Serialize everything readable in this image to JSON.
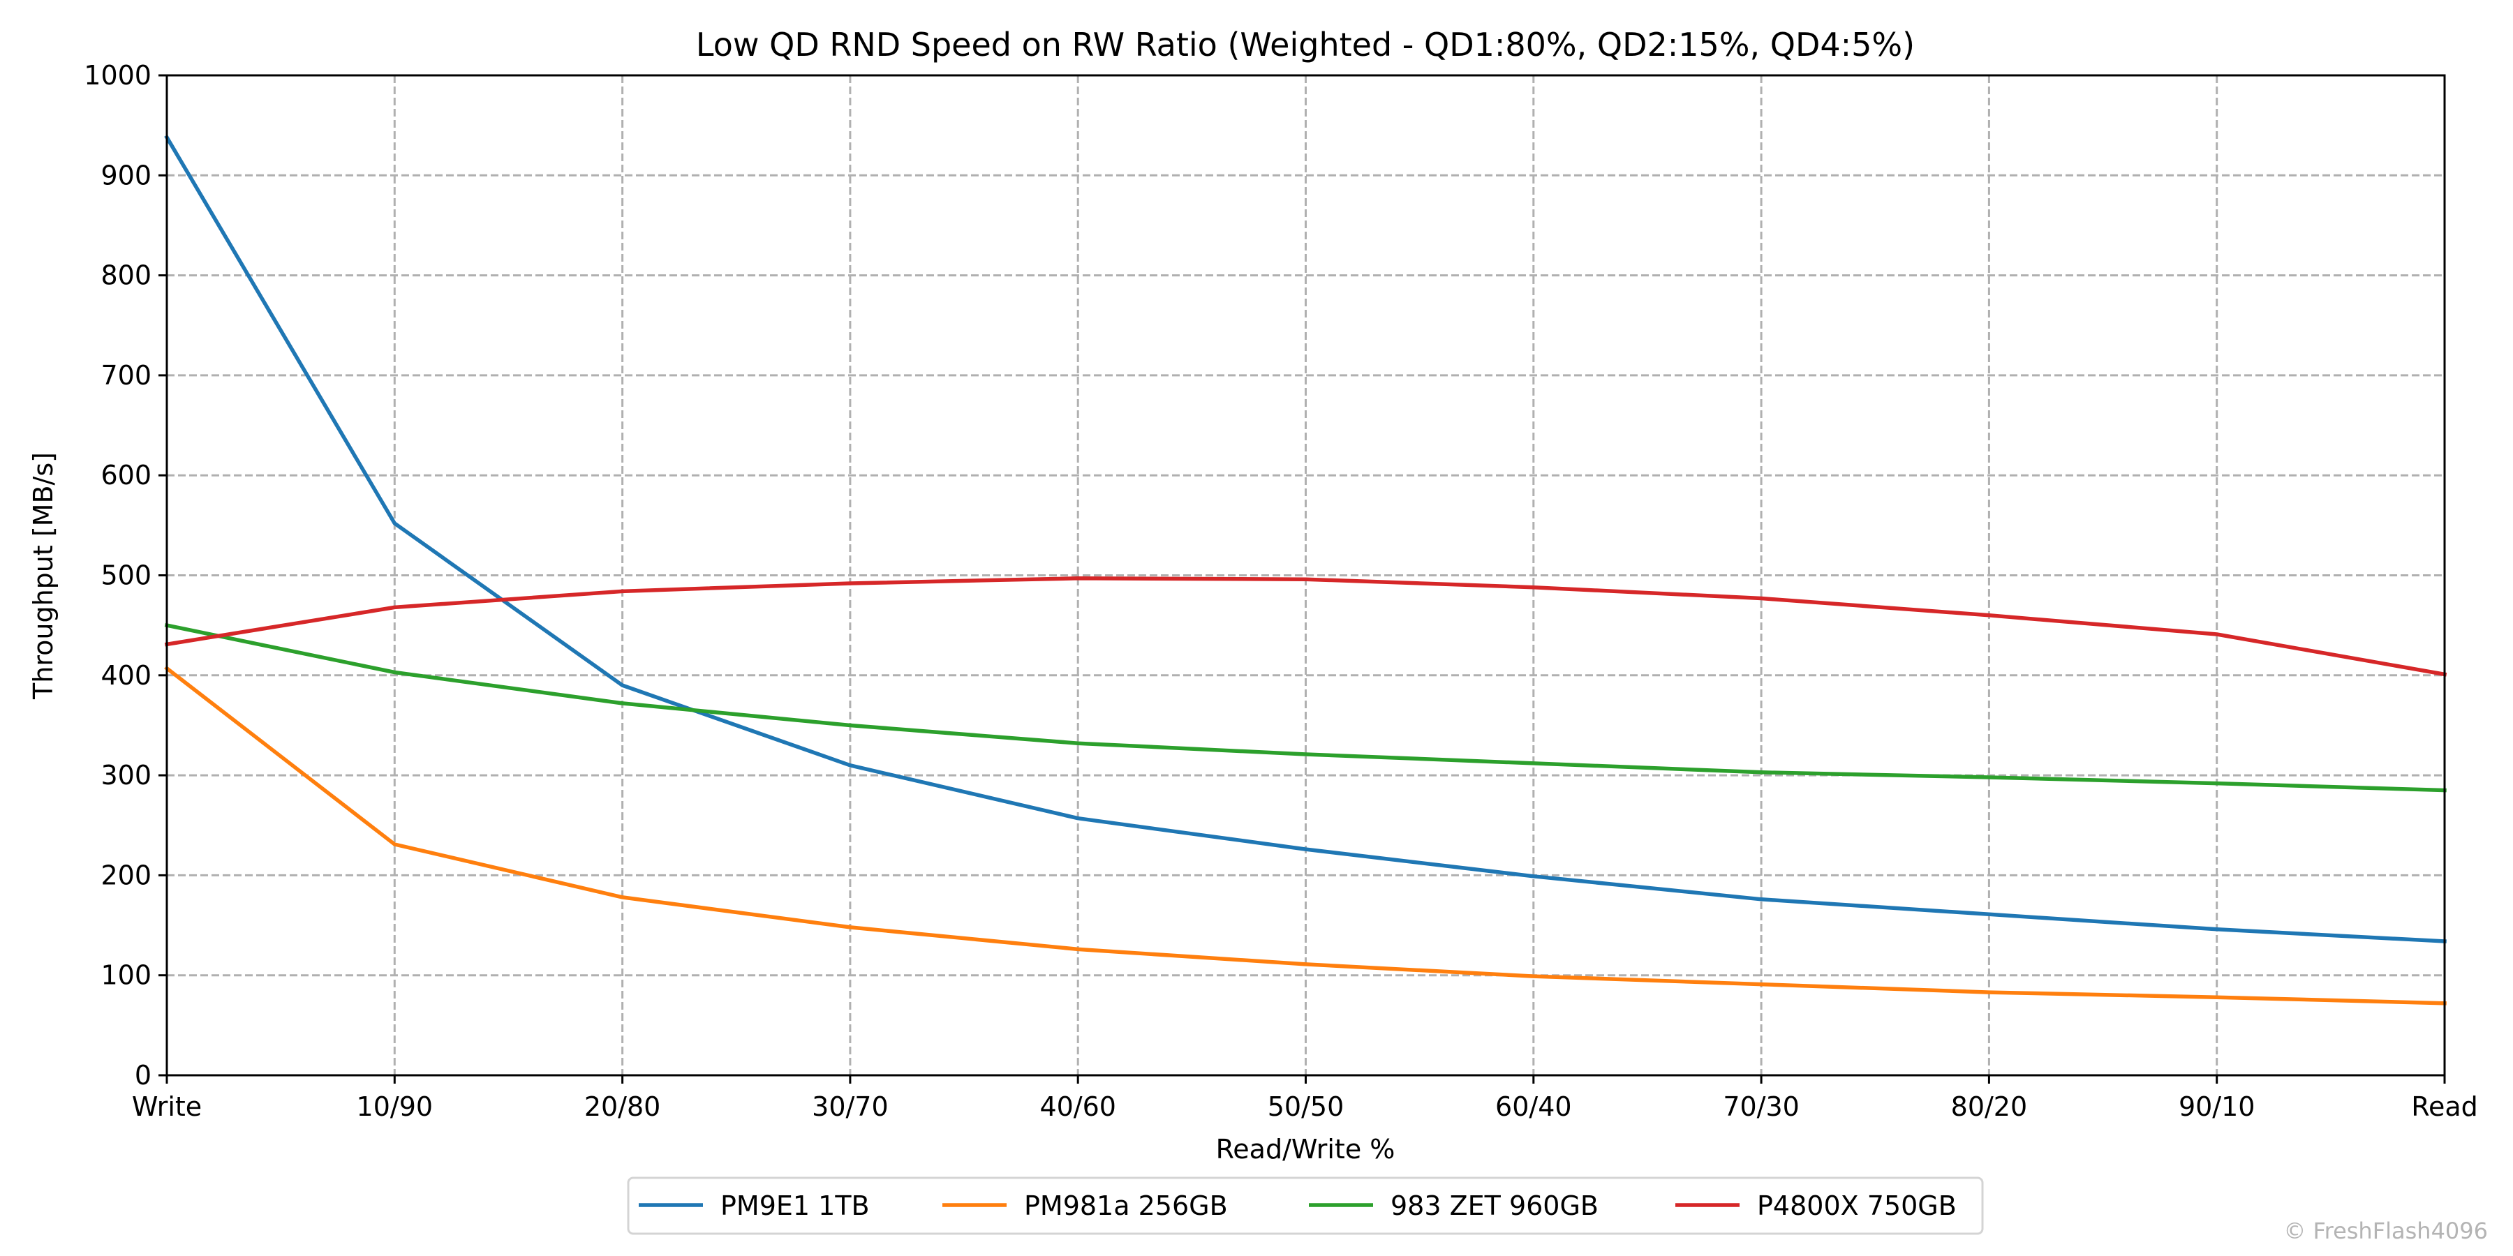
{
  "chart_data": {
    "type": "line",
    "title": "Low QD RND Speed on RW Ratio (Weighted - QD1:80%, QD2:15%, QD4:5%)",
    "xlabel": "Read/Write %",
    "ylabel": "Throughput [MB/s]",
    "categories": [
      "Write",
      "10/90",
      "20/80",
      "30/70",
      "40/60",
      "50/50",
      "60/40",
      "70/30",
      "80/20",
      "90/10",
      "Read"
    ],
    "ylim": [
      0,
      1000
    ],
    "yticks": [
      0,
      100,
      200,
      300,
      400,
      500,
      600,
      700,
      800,
      900,
      1000
    ],
    "grid": true,
    "legend_position": "bottom-center",
    "series": [
      {
        "name": "PM9E1 1TB",
        "color": "#1f77b4",
        "values": [
          938,
          552,
          390,
          310,
          257,
          226,
          199,
          176,
          161,
          146,
          134
        ]
      },
      {
        "name": "PM981a 256GB",
        "color": "#ff7f0e",
        "values": [
          407,
          231,
          178,
          148,
          126,
          111,
          99,
          91,
          83,
          78,
          72
        ]
      },
      {
        "name": "983 ZET 960GB",
        "color": "#2ca02c",
        "values": [
          450,
          403,
          372,
          350,
          332,
          321,
          312,
          303,
          298,
          292,
          285
        ]
      },
      {
        "name": "P4800X 750GB",
        "color": "#d62728",
        "values": [
          431,
          468,
          484,
          492,
          497,
          496,
          488,
          477,
          460,
          441,
          401
        ]
      }
    ],
    "watermark": "© FreshFlash4096"
  }
}
